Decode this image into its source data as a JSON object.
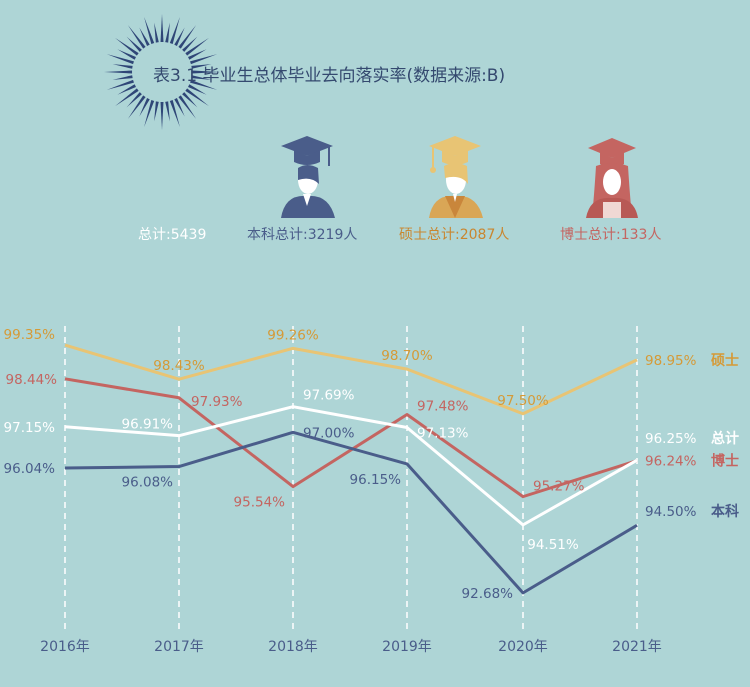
{
  "title": "表3.1 毕业生总体毕业去向落实率(数据来源:B)",
  "colors": {
    "background": "#aed5d6",
    "bachelor": "#4a5d8a",
    "master": "#e8c474",
    "doctor": "#c46561",
    "total": "#ffffff",
    "title": "#34496f"
  },
  "legend": {
    "total": "总计:5439",
    "bachelor": "本科总计:3219人",
    "master": "硕士总计:2087人",
    "doctor": "博士总计:133人"
  },
  "icons": [
    "graduate-bachelor-icon",
    "graduate-master-icon",
    "graduate-doctor-icon",
    "sunburst-icon"
  ],
  "chart_data": {
    "type": "line",
    "categories": [
      "2016年",
      "2017年",
      "2018年",
      "2019年",
      "2020年",
      "2021年"
    ],
    "series": [
      {
        "name": "硕士",
        "key": "master",
        "values": [
          99.35,
          98.43,
          99.26,
          98.7,
          97.5,
          98.95
        ],
        "labels": [
          "99.35%",
          "98.43%",
          "99.26%",
          "98.70%",
          "97.50%",
          "98.95%"
        ]
      },
      {
        "name": "博士",
        "key": "doctor",
        "values": [
          98.44,
          97.93,
          95.54,
          97.48,
          95.27,
          96.24
        ],
        "labels": [
          "98.44%",
          "97.93%",
          "95.54%",
          "97.48%",
          "95.27%",
          "96.24%"
        ]
      },
      {
        "name": "总计",
        "key": "total",
        "values": [
          97.15,
          96.91,
          97.69,
          97.13,
          94.51,
          96.25
        ],
        "labels": [
          "97.15%",
          "96.91%",
          "97.69%",
          "97.13%",
          "94.51%",
          "96.25%"
        ]
      },
      {
        "name": "本科",
        "key": "bachelor",
        "values": [
          96.04,
          96.08,
          97.0,
          96.15,
          92.68,
          94.5
        ],
        "labels": [
          "96.04%",
          "96.08%",
          "97.00%",
          "96.15%",
          "92.68%",
          "94.50%"
        ]
      }
    ],
    "ylim": [
      92.3,
      99.7
    ],
    "grid": "vertical-dashed",
    "legend": "top"
  }
}
